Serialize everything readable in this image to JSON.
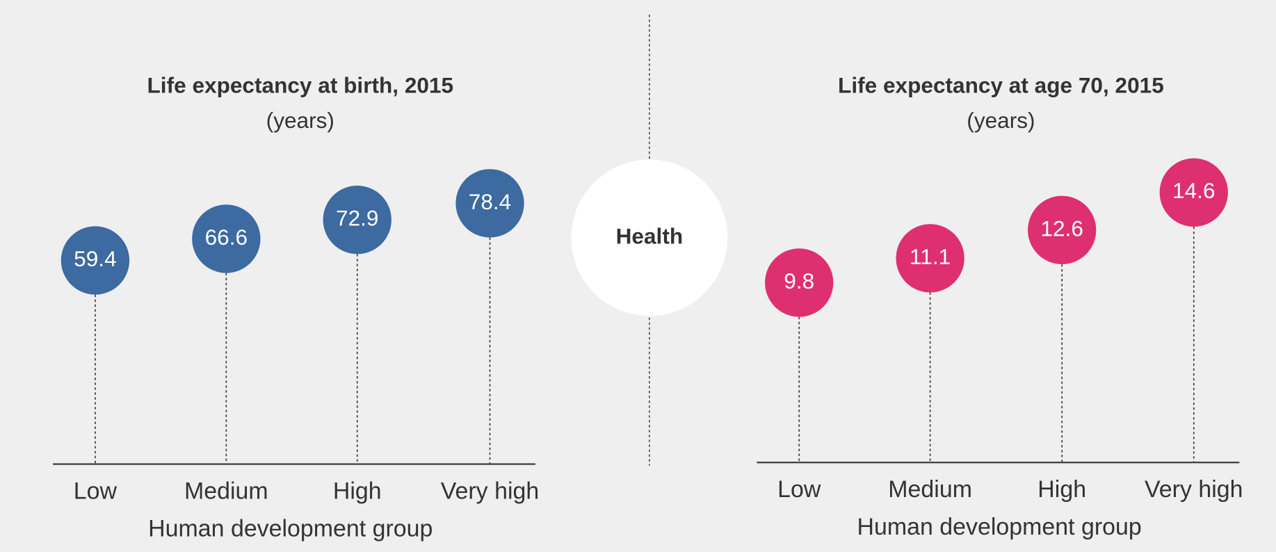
{
  "chart_data": [
    {
      "type": "lollipop",
      "title": "Life expectancy at birth, 2015",
      "subtitle": "(years)",
      "x_label": "Human development group",
      "categories": [
        "Low",
        "Medium",
        "High",
        "Very high"
      ],
      "values": [
        59.4,
        66.6,
        72.9,
        78.4
      ],
      "color": "#3c6aa1",
      "ylim": [
        22,
        97
      ]
    },
    {
      "type": "lollipop",
      "title": "Life expectancy at age 70, 2015",
      "subtitle": "(years)",
      "x_label": "Human development group",
      "categories": [
        "Low",
        "Medium",
        "High",
        "Very high"
      ],
      "values": [
        9.8,
        11.1,
        12.6,
        14.6
      ],
      "color": "#de3070",
      "ylim": [
        5,
        17
      ]
    }
  ],
  "center_label": "Health"
}
